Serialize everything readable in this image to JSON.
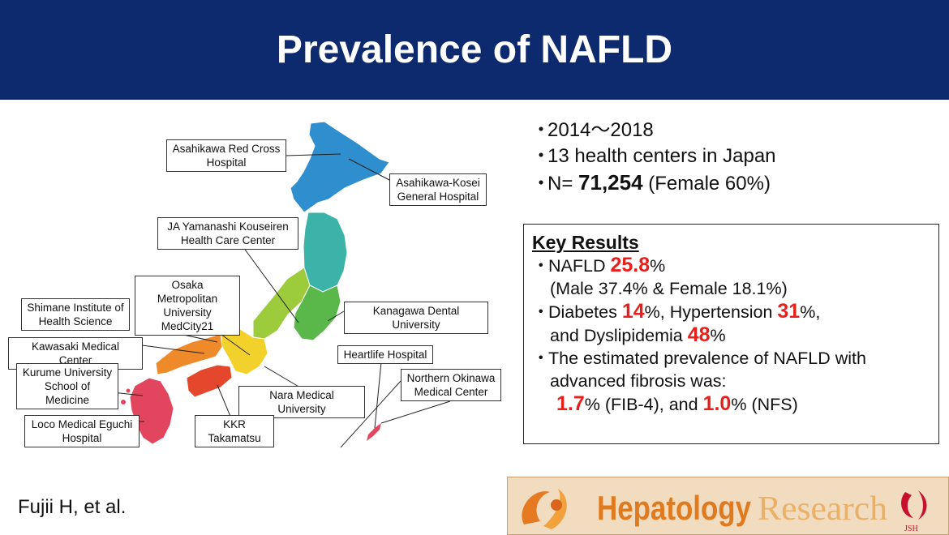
{
  "title": "Prevalence of NAFLD",
  "study": {
    "period": "2014～2018",
    "centers": "13 health centers in Japan",
    "n_prefix": "N=",
    "n_value": "71,254",
    "n_suffix": "(Female 60%)"
  },
  "key_results": {
    "heading": "Key Results",
    "nafld_label": "NAFLD",
    "nafld_value": "25.8",
    "nafld_sex": "(Male 37.4% & Female 18.1%)",
    "diabetes_label": "Diabetes",
    "diabetes_value": "14",
    "hypertension_label": ", Hypertension",
    "hypertension_value": "31",
    "dyslipidemia_label": "and Dyslipidemia",
    "dyslipidemia_value": "48",
    "fibrosis_line1": "The estimated prevalence of NAFLD with",
    "fibrosis_line2": "advanced fibrosis was:",
    "fib4_value": "1.7",
    "fib4_label": "(FIB-4), and",
    "nfs_value": "1.0",
    "nfs_label": "(NFS)",
    "percent": "%"
  },
  "bullet_symbol": "・",
  "map_labels": {
    "asahikawa_red_cross": "Asahikawa Red Cross\nHospital",
    "asahikawa_kosei": "Asahikawa-Kosei\nGeneral Hospital",
    "ja_yamanashi": "JA Yamanashi Kouseiren\nHealth Care Center",
    "osaka": "Osaka Metropolitan\nUniversity\nMedCity21",
    "shimane": "Shimane Institute of\nHealth Science",
    "kanagawa": "Kanagawa Dental University",
    "kawasaki": "Kawasaki Medical Center",
    "heartlife": "Heartlife Hospital",
    "kurume": "Kurume University\nSchool of Medicine",
    "northern_okinawa": "Northern Okinawa\nMedical Center",
    "nara": "Nara Medical University",
    "loco": "Loco Medical Eguchi\nHospital",
    "kkr": "KKR Takamatsu"
  },
  "citation": "Fujii H, et al.",
  "logo": {
    "text": "Hepatology Research",
    "mark": "JSH"
  },
  "colors": {
    "title_bar": "#0d2a6e",
    "highlight": "#e8201c",
    "hokkaido": "#2f8fce",
    "tohoku": "#3bb3a8",
    "kanto": "#5ab74a",
    "chubu": "#9ccb3b",
    "kinki": "#f2d12c",
    "chugoku": "#ef8a2b",
    "shikoku": "#e4472b",
    "kyushu": "#e2455e"
  }
}
